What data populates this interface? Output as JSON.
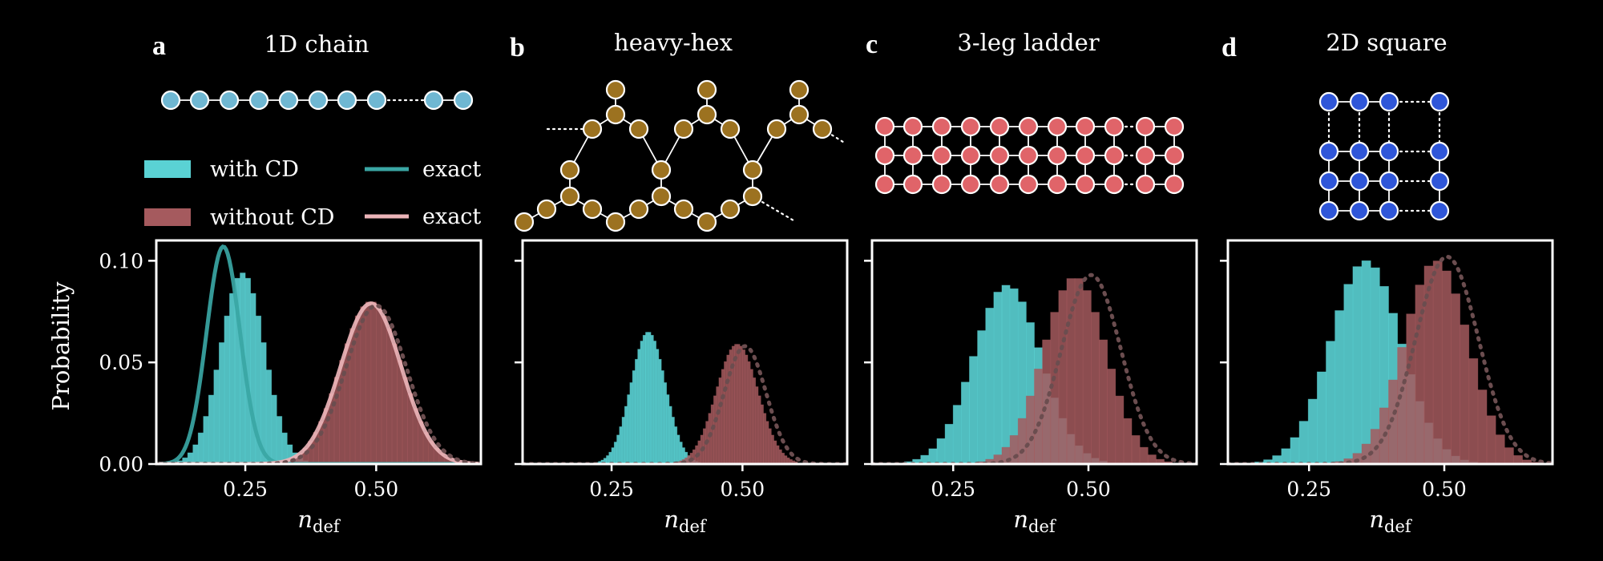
{
  "colors": {
    "background": "#000000",
    "with_cd": "#5ad2d4",
    "without_cd": "#a55a5e",
    "exact_with": "#3aa6a4",
    "exact_without": "#ebb4b8",
    "exact_dotted": "#6b4d4f",
    "chain_node": "#6fb7d2",
    "heavyhex_node": "#9c7220",
    "ladder_node": "#e06469",
    "square_node": "#2f56d8"
  },
  "legend": {
    "with_cd": "with CD",
    "without_cd": "without CD",
    "exact_a": "exact",
    "exact_b": "exact"
  },
  "ylabel": "Probability",
  "chart_data": [
    {
      "type": "bar",
      "panel": "a",
      "title": "1D chain",
      "lattice": "chain",
      "xlabel": "n_def",
      "xlim": [
        0.08,
        0.7
      ],
      "ylim": [
        0,
        0.11
      ],
      "xticks": [
        "0.25",
        "0.50"
      ],
      "xtick_values": [
        0.25,
        0.5
      ],
      "yticks": [
        "0.00",
        "0.05",
        "0.10"
      ],
      "ytick_values": [
        0.0,
        0.05,
        0.1
      ],
      "series": [
        {
          "name": "with CD",
          "kind": "histogram",
          "mu": 0.245,
          "sigma": 0.042,
          "peak": 0.094,
          "bin_width": 0.01
        },
        {
          "name": "without CD",
          "kind": "histogram",
          "mu": 0.49,
          "sigma": 0.058,
          "peak": 0.08,
          "bin_width": 0.01
        },
        {
          "name": "exact",
          "kind": "line",
          "mu": 0.208,
          "sigma": 0.032,
          "peak": 0.107
        },
        {
          "name": "exact",
          "kind": "line",
          "mu": 0.49,
          "sigma": 0.058,
          "peak": 0.079
        },
        {
          "kind": "dotted",
          "mu": 0.5,
          "sigma": 0.058,
          "peak": 0.078
        }
      ]
    },
    {
      "type": "bar",
      "panel": "b",
      "title": "heavy-hex",
      "lattice": "heavy-hex",
      "xlabel": "n_def",
      "xlim": [
        0.08,
        0.7
      ],
      "ylim": [
        0,
        0.11
      ],
      "xticks": [
        "0.25",
        "0.50"
      ],
      "xtick_values": [
        0.25,
        0.5
      ],
      "yticks": [],
      "ytick_values": [
        0.0,
        0.05,
        0.1
      ],
      "series": [
        {
          "name": "with CD",
          "kind": "histogram",
          "mu": 0.32,
          "sigma": 0.033,
          "peak": 0.065,
          "bin_width": 0.005
        },
        {
          "name": "without CD",
          "kind": "histogram",
          "mu": 0.49,
          "sigma": 0.04,
          "peak": 0.059,
          "bin_width": 0.005
        },
        {
          "kind": "dotted",
          "mu": 0.505,
          "sigma": 0.04,
          "peak": 0.058
        }
      ]
    },
    {
      "type": "bar",
      "panel": "c",
      "title": "3-leg ladder",
      "lattice": "ladder",
      "xlabel": "n_def",
      "xlim": [
        0.1,
        0.7
      ],
      "ylim": [
        0,
        0.11
      ],
      "xticks": [
        "0.25",
        "0.50"
      ],
      "xtick_values": [
        0.25,
        0.5
      ],
      "yticks": [],
      "ytick_values": [
        0.0,
        0.05,
        0.1
      ],
      "series": [
        {
          "name": "with CD",
          "kind": "histogram",
          "mu": 0.35,
          "sigma": 0.062,
          "peak": 0.088,
          "bin_width": 0.015
        },
        {
          "name": "without CD",
          "kind": "histogram",
          "mu": 0.475,
          "sigma": 0.058,
          "peak": 0.092,
          "bin_width": 0.015
        },
        {
          "kind": "dotted",
          "mu": 0.505,
          "sigma": 0.055,
          "peak": 0.093
        }
      ]
    },
    {
      "type": "bar",
      "panel": "d",
      "title": "2D square",
      "lattice": "square",
      "xlabel": "n_def",
      "xlim": [
        0.1,
        0.7
      ],
      "ylim": [
        0,
        0.11
      ],
      "xticks": [
        "0.25",
        "0.50"
      ],
      "xtick_values": [
        0.25,
        0.5
      ],
      "yticks": [],
      "ytick_values": [
        0.0,
        0.05,
        0.1
      ],
      "series": [
        {
          "name": "with CD",
          "kind": "histogram",
          "mu": 0.355,
          "sigma": 0.065,
          "peak": 0.1,
          "bin_width": 0.0165
        },
        {
          "name": "without CD",
          "kind": "histogram",
          "mu": 0.485,
          "sigma": 0.06,
          "peak": 0.1,
          "bin_width": 0.0165
        },
        {
          "kind": "dotted",
          "mu": 0.505,
          "sigma": 0.058,
          "peak": 0.102
        }
      ]
    }
  ]
}
